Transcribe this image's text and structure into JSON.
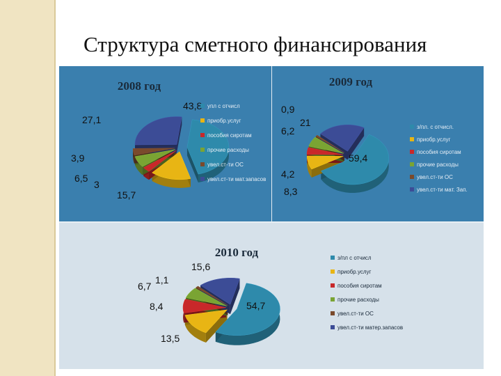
{
  "slide": {
    "title": "Структура сметного финансирования"
  },
  "colors": {
    "sidebar": "#f0e4c2",
    "panel_blue": "#3a7fae",
    "panel_light": "#d6e1ea"
  },
  "chart_data": [
    {
      "type": "pie",
      "title": "2008 год",
      "values": [
        43.8,
        15.7,
        3,
        6.5,
        3.9,
        27.1
      ],
      "labels": [
        "43,8",
        "15,7",
        "3",
        "6,5",
        "3,9",
        "27,1"
      ],
      "legend": [
        "упл с отчисл",
        "приобр.услуг",
        "пособия сиротам",
        "прочие расходы",
        "увел.ст-ти ОС",
        "увел.ст-ти мат.запасов"
      ],
      "colors": [
        "#2e8aab",
        "#e8b514",
        "#c8282a",
        "#7aa433",
        "#7a4a2c",
        "#3c4c96"
      ],
      "legend_position": "right"
    },
    {
      "type": "pie",
      "title": "2009 год",
      "values": [
        59.4,
        8.3,
        4.2,
        6.2,
        0.9,
        21
      ],
      "labels": [
        "59,4",
        "8,3",
        "4,2",
        "6,2",
        "0,9",
        "21"
      ],
      "legend": [
        "з/пл. с отчисл.",
        "приобр.услуг",
        "пособия сиротам",
        "прочие расходы",
        "увел.ст-ти ОС",
        "увел.ст-ти мат. Зап."
      ],
      "colors": [
        "#2e8aab",
        "#e8b514",
        "#c8282a",
        "#7aa433",
        "#7a4a2c",
        "#3c4c96"
      ],
      "legend_position": "right"
    },
    {
      "type": "pie",
      "title": "2010 год",
      "values": [
        54.7,
        13.5,
        8.4,
        6.7,
        1.1,
        15.6
      ],
      "labels": [
        "54,7",
        "13,5",
        "8,4",
        "6,7",
        "1,1",
        "15,6"
      ],
      "legend": [
        "з/пл с отчисл",
        "приобр.услуг",
        "пособия сиротам",
        "прочие расходы",
        "увел.ст-ти ОС",
        "увел.ст-ти матер.запасов"
      ],
      "colors": [
        "#2e8aab",
        "#e8b514",
        "#c8282a",
        "#7aa433",
        "#7a4a2c",
        "#3c4c96"
      ],
      "legend_position": "right"
    }
  ]
}
